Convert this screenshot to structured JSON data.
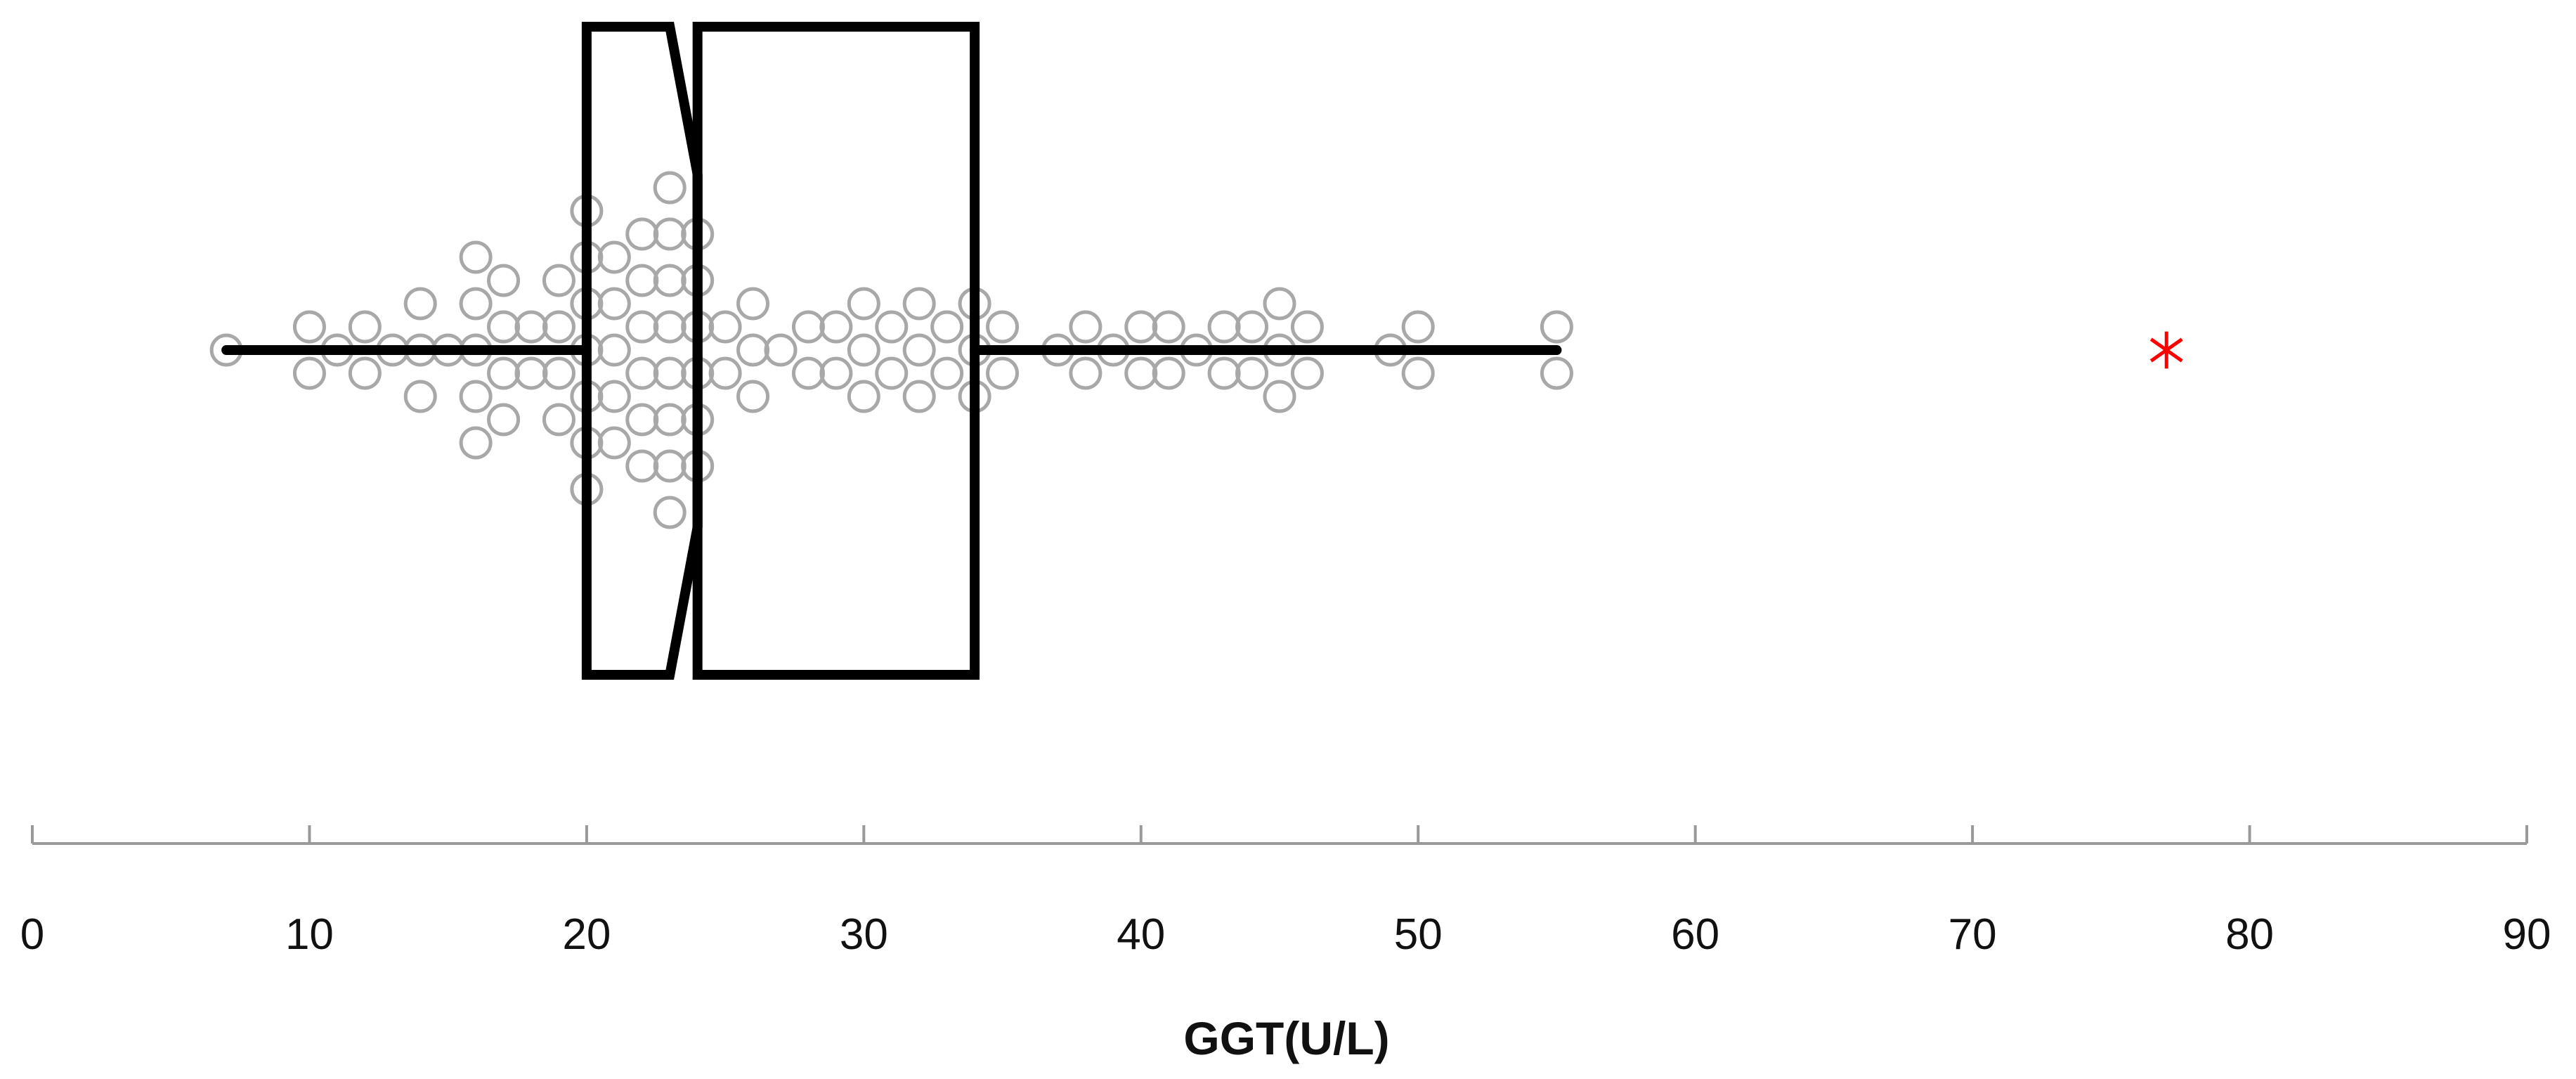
{
  "chart_data": {
    "type": "box",
    "orientation": "horizontal",
    "notched": true,
    "xlabel": "GGT(U/L)",
    "xlim": [
      0,
      90
    ],
    "xticks": [
      0,
      10,
      20,
      30,
      40,
      50,
      60,
      70,
      80,
      90
    ],
    "box": {
      "whisker_low": 7,
      "q1": 20,
      "median": 24,
      "q3": 34,
      "whisker_high": 55,
      "notch_low": 23,
      "notch_high": 24
    },
    "outliers": [
      77
    ],
    "points": [
      [
        7,
        0
      ],
      [
        10,
        1
      ],
      [
        10,
        -1
      ],
      [
        11,
        0
      ],
      [
        12,
        1
      ],
      [
        12,
        -1
      ],
      [
        13,
        0
      ],
      [
        14,
        2
      ],
      [
        14,
        0
      ],
      [
        14,
        -2
      ],
      [
        15,
        0
      ],
      [
        16,
        4
      ],
      [
        16,
        2
      ],
      [
        16,
        0
      ],
      [
        16,
        -2
      ],
      [
        16,
        -4
      ],
      [
        17,
        3
      ],
      [
        17,
        1
      ],
      [
        17,
        -1
      ],
      [
        17,
        -3
      ],
      [
        18,
        1
      ],
      [
        18,
        -1
      ],
      [
        19,
        3
      ],
      [
        19,
        1
      ],
      [
        19,
        -1
      ],
      [
        19,
        -3
      ],
      [
        20,
        6
      ],
      [
        20,
        4
      ],
      [
        20,
        2
      ],
      [
        20,
        0
      ],
      [
        20,
        -2
      ],
      [
        20,
        -4
      ],
      [
        20,
        -6
      ],
      [
        21,
        4
      ],
      [
        21,
        2
      ],
      [
        21,
        0
      ],
      [
        21,
        -2
      ],
      [
        21,
        -4
      ],
      [
        22,
        5
      ],
      [
        22,
        3
      ],
      [
        22,
        1
      ],
      [
        22,
        -1
      ],
      [
        22,
        -3
      ],
      [
        22,
        -5
      ],
      [
        23,
        7
      ],
      [
        23,
        5
      ],
      [
        23,
        3
      ],
      [
        23,
        1
      ],
      [
        23,
        -1
      ],
      [
        23,
        -3
      ],
      [
        23,
        -5
      ],
      [
        23,
        -7
      ],
      [
        24,
        5
      ],
      [
        24,
        3
      ],
      [
        24,
        1
      ],
      [
        24,
        -1
      ],
      [
        24,
        -3
      ],
      [
        24,
        -5
      ],
      [
        25,
        1
      ],
      [
        25,
        -1
      ],
      [
        26,
        2
      ],
      [
        26,
        0
      ],
      [
        26,
        -2
      ],
      [
        27,
        0
      ],
      [
        28,
        1
      ],
      [
        28,
        -1
      ],
      [
        29,
        1
      ],
      [
        29,
        -1
      ],
      [
        30,
        2
      ],
      [
        30,
        0
      ],
      [
        30,
        -2
      ],
      [
        31,
        1
      ],
      [
        31,
        -1
      ],
      [
        32,
        2
      ],
      [
        32,
        0
      ],
      [
        32,
        -2
      ],
      [
        33,
        1
      ],
      [
        33,
        -1
      ],
      [
        34,
        2
      ],
      [
        34,
        0
      ],
      [
        34,
        -2
      ],
      [
        35,
        1
      ],
      [
        35,
        -1
      ],
      [
        37,
        0
      ],
      [
        38,
        1
      ],
      [
        38,
        -1
      ],
      [
        39,
        0
      ],
      [
        40,
        1
      ],
      [
        40,
        -1
      ],
      [
        41,
        1
      ],
      [
        41,
        -1
      ],
      [
        42,
        0
      ],
      [
        43,
        1
      ],
      [
        43,
        -1
      ],
      [
        44,
        1
      ],
      [
        44,
        -1
      ],
      [
        45,
        2
      ],
      [
        45,
        0
      ],
      [
        45,
        -2
      ],
      [
        46,
        1
      ],
      [
        46,
        -1
      ],
      [
        49,
        0
      ],
      [
        50,
        1
      ],
      [
        50,
        -1
      ],
      [
        55,
        1
      ],
      [
        55,
        -1
      ]
    ],
    "colors": {
      "box": "#000000",
      "points": "#a8a8a8",
      "outlier": "#ff0000",
      "axis": "#999999"
    },
    "grid": false,
    "legend": "none"
  }
}
